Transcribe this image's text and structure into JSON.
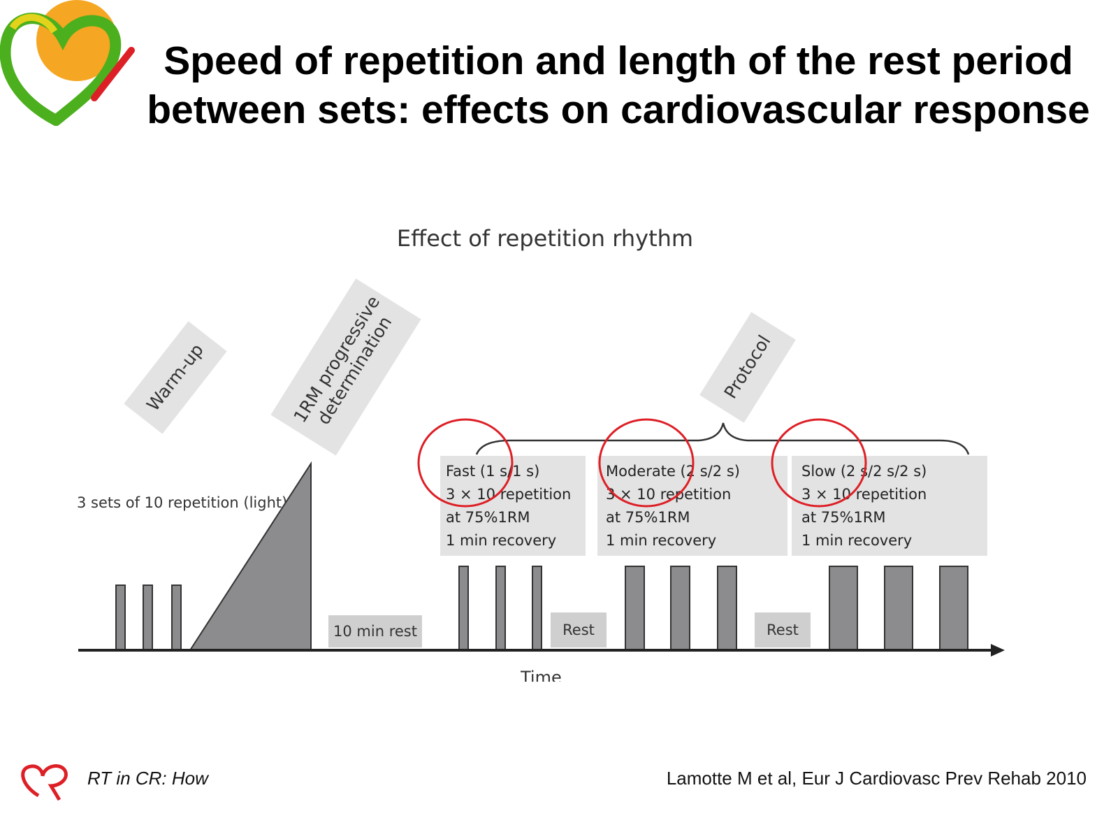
{
  "slide": {
    "title_line1": "Speed of repetition and length of the rest period",
    "title_line2": "between sets: effects on cardiovascular response"
  },
  "diagram": {
    "title": "Effect of repetition rhythm",
    "phases": {
      "warmup": "Warm-up",
      "rm_line1": "1RM progressive",
      "rm_line2": "determination",
      "protocol": "Protocol"
    },
    "warmup_note": "3 sets of 10 repetition (light)",
    "rest_long": "10 min rest",
    "rest_short": "Rest",
    "axis_label": "Time",
    "conditions": [
      {
        "name": "Fast (1 s/1 s)",
        "sets": "3 × 10 repetition",
        "load": "at 75%1RM",
        "recovery": "1 min recovery"
      },
      {
        "name": "Moderate (2 s/2 s)",
        "sets": "3 × 10 repetition",
        "load": "at 75%1RM",
        "recovery": "1 min recovery"
      },
      {
        "name": "Slow (2 s/2 s/2 s)",
        "sets": "3 × 10 repetition",
        "load": "at 75%1RM",
        "recovery": "1 min recovery"
      }
    ]
  },
  "footer": {
    "left": "RT in CR: How",
    "right": "Lamotte M et al, Eur J Cardiovasc Prev Rehab 2010"
  },
  "colors": {
    "bar": "#8c8c8e",
    "highlight_circle": "#dd1f26",
    "logo_orange": "#f5a623",
    "logo_green": "#4caf1e",
    "logo_red": "#dd1f26"
  }
}
